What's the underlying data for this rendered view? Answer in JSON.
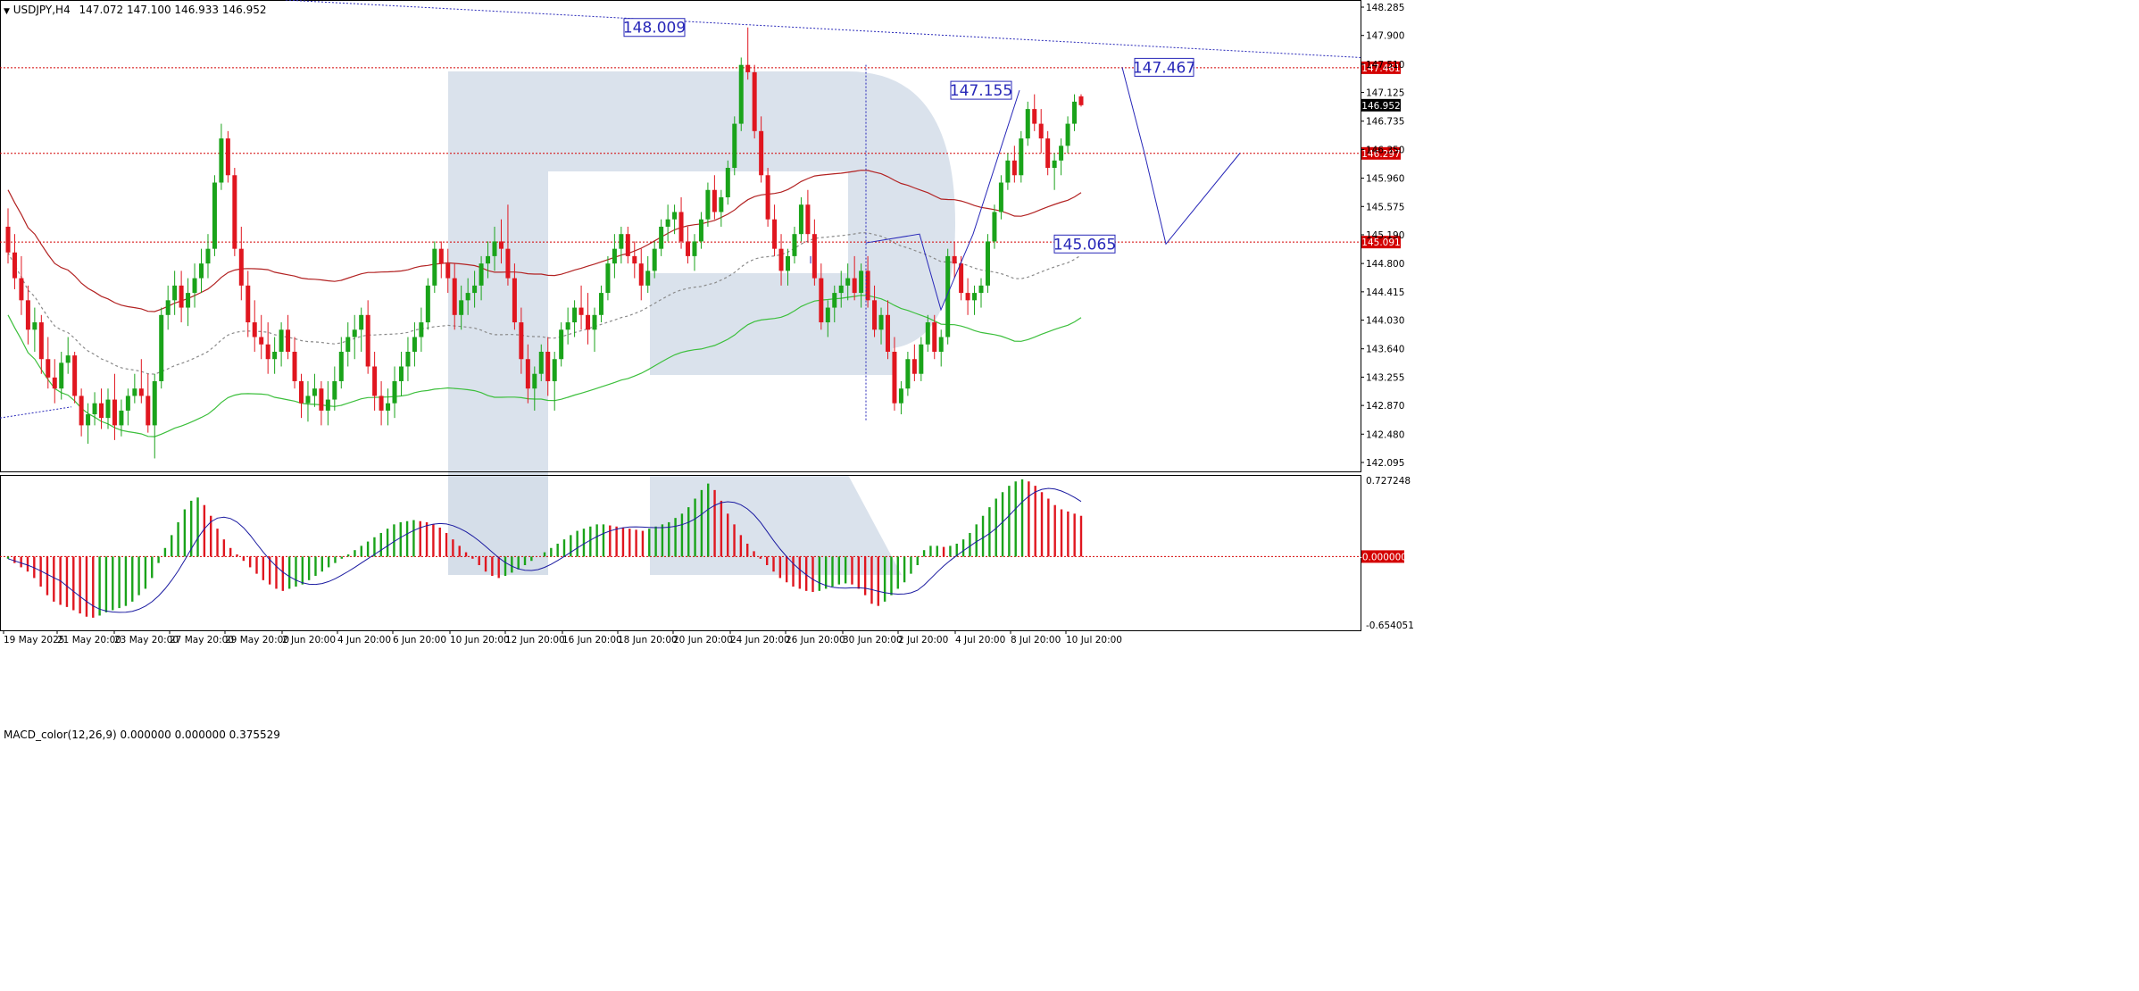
{
  "header": {
    "symbol": "USDJPY,H4",
    "ohlc": "147.072 147.100 146.933 146.952",
    "macd_label": "MACD_color(12,26,9) 0.000000 0.000000 0.375529"
  },
  "colors": {
    "bull": "#1aa31a",
    "bear": "#e0161f",
    "ma_red": "#b22222",
    "ma_green": "#3cbf3c",
    "ma_gray": "#8a8a8a",
    "forecast": "#2727b8",
    "level_line": "#d40000",
    "macd_signal": "#1a1aa0",
    "watermark": "#d4dde9"
  },
  "chart_data": [
    {
      "type": "candlestick",
      "symbol": "USDJPY",
      "timeframe": "H4",
      "ylim": [
        142.0,
        148.2
      ],
      "y_ticks": [
        148.285,
        147.9,
        147.51,
        147.125,
        146.735,
        146.35,
        145.96,
        145.575,
        145.19,
        144.8,
        144.415,
        144.03,
        143.64,
        143.255,
        142.87,
        142.48,
        142.095
      ],
      "x_ticks": [
        "19 May 2025",
        "21 May 20:00",
        "23 May 20:00",
        "27 May 20:00",
        "29 May 20:00",
        "2 Jun 20:00",
        "4 Jun 20:00",
        "6 Jun 20:00",
        "10 Jun 20:00",
        "12 Jun 20:00",
        "16 Jun 20:00",
        "18 Jun 20:00",
        "20 Jun 20:00",
        "24 Jun 20:00",
        "26 Jun 20:00",
        "30 Jun 20:00",
        "2 Jul 20:00",
        "4 Jul 20:00",
        "8 Jul 20:00",
        "10 Jul 20:00"
      ],
      "levels": [
        {
          "price": 147.461,
          "label": "147.461"
        },
        {
          "price": 146.297,
          "label": "146.297"
        },
        {
          "price": 145.091,
          "label": "145.091"
        }
      ],
      "current_price": {
        "price": 146.952,
        "label": "146.952"
      },
      "annotations": [
        {
          "text": "148.009",
          "price": 148.009
        },
        {
          "text": "147.155",
          "price": 147.155
        },
        {
          "text": "147.467",
          "price": 147.467
        },
        {
          "text": "145.065",
          "price": 145.065
        }
      ],
      "forecast_path": [
        147.467,
        146.297,
        145.065,
        146.3
      ],
      "candles": [
        [
          145.3,
          145.55,
          144.8,
          144.95
        ],
        [
          144.95,
          145.2,
          144.45,
          144.6
        ],
        [
          144.6,
          144.9,
          144.1,
          144.3
        ],
        [
          144.3,
          144.5,
          143.7,
          143.9
        ],
        [
          143.9,
          144.2,
          143.6,
          144.0
        ],
        [
          144.0,
          144.1,
          143.3,
          143.5
        ],
        [
          143.5,
          143.8,
          143.1,
          143.25
        ],
        [
          143.25,
          143.5,
          142.9,
          143.1
        ],
        [
          143.1,
          143.6,
          142.95,
          143.45
        ],
        [
          143.45,
          143.8,
          143.3,
          143.55
        ],
        [
          143.55,
          143.6,
          142.9,
          143.0
        ],
        [
          143.0,
          143.1,
          142.45,
          142.6
        ],
        [
          142.6,
          142.9,
          142.35,
          142.75
        ],
        [
          142.75,
          143.05,
          142.6,
          142.9
        ],
        [
          142.9,
          143.1,
          142.55,
          142.7
        ],
        [
          142.7,
          143.1,
          142.55,
          142.95
        ],
        [
          142.95,
          143.3,
          142.4,
          142.6
        ],
        [
          142.6,
          142.95,
          142.45,
          142.8
        ],
        [
          142.8,
          143.1,
          142.6,
          143.0
        ],
        [
          143.0,
          143.3,
          142.9,
          143.1
        ],
        [
          143.1,
          143.5,
          142.9,
          143.0
        ],
        [
          143.0,
          143.3,
          142.5,
          142.6
        ],
        [
          142.6,
          143.3,
          142.15,
          143.2
        ],
        [
          143.2,
          144.2,
          143.1,
          144.1
        ],
        [
          144.1,
          144.5,
          143.9,
          144.3
        ],
        [
          144.3,
          144.7,
          144.1,
          144.5
        ],
        [
          144.5,
          144.7,
          144.0,
          144.2
        ],
        [
          144.2,
          144.6,
          143.95,
          144.4
        ],
        [
          144.4,
          144.8,
          144.2,
          144.6
        ],
        [
          144.6,
          145.0,
          144.4,
          144.8
        ],
        [
          144.8,
          145.2,
          144.6,
          145.0
        ],
        [
          145.0,
          146.0,
          144.9,
          145.9
        ],
        [
          145.9,
          146.7,
          145.8,
          146.5
        ],
        [
          146.5,
          146.6,
          145.9,
          146.0
        ],
        [
          146.0,
          146.1,
          144.9,
          145.0
        ],
        [
          145.0,
          145.3,
          144.3,
          144.5
        ],
        [
          144.5,
          144.7,
          143.8,
          144.0
        ],
        [
          144.0,
          144.3,
          143.6,
          143.8
        ],
        [
          143.8,
          144.1,
          143.5,
          143.7
        ],
        [
          143.7,
          144.0,
          143.3,
          143.5
        ],
        [
          143.5,
          143.8,
          143.3,
          143.6
        ],
        [
          143.6,
          144.0,
          143.4,
          143.9
        ],
        [
          143.9,
          144.1,
          143.5,
          143.6
        ],
        [
          143.6,
          143.8,
          143.1,
          143.2
        ],
        [
          143.2,
          143.3,
          142.7,
          142.9
        ],
        [
          142.9,
          143.2,
          142.65,
          143.0
        ],
        [
          143.0,
          143.3,
          142.85,
          143.1
        ],
        [
          143.1,
          143.2,
          142.6,
          142.8
        ],
        [
          142.8,
          143.2,
          142.6,
          142.95
        ],
        [
          142.95,
          143.4,
          142.8,
          143.2
        ],
        [
          143.2,
          143.8,
          143.1,
          143.6
        ],
        [
          143.6,
          144.0,
          143.4,
          143.8
        ],
        [
          143.8,
          144.1,
          143.5,
          143.9
        ],
        [
          143.9,
          144.2,
          143.6,
          144.1
        ],
        [
          144.1,
          144.3,
          143.3,
          143.4
        ],
        [
          143.4,
          143.6,
          142.8,
          143.0
        ],
        [
          143.0,
          143.2,
          142.6,
          142.8
        ],
        [
          142.8,
          143.1,
          142.6,
          142.9
        ],
        [
          142.9,
          143.4,
          142.7,
          143.2
        ],
        [
          143.2,
          143.6,
          143.0,
          143.4
        ],
        [
          143.4,
          143.8,
          143.2,
          143.6
        ],
        [
          143.6,
          144.0,
          143.4,
          143.8
        ],
        [
          143.8,
          144.2,
          143.6,
          144.0
        ],
        [
          144.0,
          144.6,
          143.9,
          144.5
        ],
        [
          144.5,
          145.1,
          144.4,
          145.0
        ],
        [
          145.0,
          145.1,
          144.6,
          144.8
        ],
        [
          144.8,
          145.0,
          144.4,
          144.6
        ],
        [
          144.6,
          144.8,
          143.9,
          144.1
        ],
        [
          144.1,
          144.5,
          143.9,
          144.3
        ],
        [
          144.3,
          144.6,
          144.1,
          144.4
        ],
        [
          144.4,
          144.7,
          144.2,
          144.5
        ],
        [
          144.5,
          144.9,
          144.3,
          144.8
        ],
        [
          144.8,
          145.1,
          144.6,
          144.9
        ],
        [
          144.9,
          145.3,
          144.7,
          145.1
        ],
        [
          145.1,
          145.4,
          144.8,
          145.0
        ],
        [
          145.0,
          145.6,
          144.5,
          144.6
        ],
        [
          144.6,
          144.8,
          143.9,
          144.0
        ],
        [
          144.0,
          144.2,
          143.3,
          143.5
        ],
        [
          143.5,
          143.7,
          142.9,
          143.1
        ],
        [
          143.1,
          143.4,
          142.8,
          143.3
        ],
        [
          143.3,
          143.7,
          143.2,
          143.6
        ],
        [
          143.6,
          143.8,
          143.0,
          143.2
        ],
        [
          143.2,
          143.6,
          142.8,
          143.5
        ],
        [
          143.5,
          144.0,
          143.4,
          143.9
        ],
        [
          143.9,
          144.2,
          143.7,
          144.0
        ],
        [
          144.0,
          144.3,
          143.8,
          144.2
        ],
        [
          144.2,
          144.5,
          143.9,
          144.1
        ],
        [
          144.1,
          144.4,
          143.7,
          143.9
        ],
        [
          143.9,
          144.2,
          143.6,
          144.1
        ],
        [
          144.1,
          144.5,
          144.0,
          144.4
        ],
        [
          144.4,
          144.9,
          144.3,
          144.8
        ],
        [
          144.8,
          145.2,
          144.6,
          145.0
        ],
        [
          145.0,
          145.3,
          144.8,
          145.2
        ],
        [
          145.2,
          145.3,
          144.8,
          144.9
        ],
        [
          144.9,
          145.1,
          144.6,
          144.8
        ],
        [
          144.8,
          145.0,
          144.3,
          144.5
        ],
        [
          144.5,
          144.9,
          144.4,
          144.7
        ],
        [
          144.7,
          145.1,
          144.6,
          145.0
        ],
        [
          145.0,
          145.4,
          144.9,
          145.3
        ],
        [
          145.3,
          145.6,
          145.1,
          145.4
        ],
        [
          145.4,
          145.6,
          145.2,
          145.5
        ],
        [
          145.5,
          145.7,
          145.0,
          145.1
        ],
        [
          145.1,
          145.3,
          144.8,
          144.9
        ],
        [
          144.9,
          145.2,
          144.7,
          145.1
        ],
        [
          145.1,
          145.5,
          145.0,
          145.4
        ],
        [
          145.4,
          145.9,
          145.3,
          145.8
        ],
        [
          145.8,
          146.0,
          145.4,
          145.5
        ],
        [
          145.5,
          145.8,
          145.3,
          145.7
        ],
        [
          145.7,
          146.2,
          145.6,
          146.1
        ],
        [
          146.1,
          146.8,
          146.0,
          146.7
        ],
        [
          146.7,
          147.6,
          146.6,
          147.5
        ],
        [
          147.5,
          148.009,
          147.3,
          147.4
        ],
        [
          147.4,
          147.5,
          146.5,
          146.6
        ],
        [
          146.6,
          146.8,
          145.9,
          146.0
        ],
        [
          146.0,
          146.1,
          145.3,
          145.4
        ],
        [
          145.4,
          145.6,
          144.9,
          145.0
        ],
        [
          145.0,
          145.2,
          144.5,
          144.7
        ],
        [
          144.7,
          145.0,
          144.5,
          144.9
        ],
        [
          144.9,
          145.3,
          144.8,
          145.2
        ],
        [
          145.2,
          145.7,
          145.1,
          145.6
        ],
        [
          145.6,
          145.8,
          145.1,
          145.2
        ],
        [
          145.2,
          145.4,
          144.5,
          144.6
        ],
        [
          144.6,
          144.8,
          143.9,
          144.0
        ],
        [
          144.0,
          144.3,
          143.8,
          144.2
        ],
        [
          144.2,
          144.5,
          144.0,
          144.4
        ],
        [
          144.4,
          144.7,
          144.2,
          144.5
        ],
        [
          144.5,
          144.8,
          144.3,
          144.6
        ],
        [
          144.6,
          144.9,
          144.3,
          144.4
        ],
        [
          144.4,
          144.8,
          144.2,
          144.7
        ],
        [
          144.7,
          144.9,
          144.2,
          144.3
        ],
        [
          144.3,
          144.5,
          143.8,
          143.9
        ],
        [
          143.9,
          144.2,
          143.7,
          144.1
        ],
        [
          144.1,
          144.3,
          143.5,
          143.6
        ],
        [
          143.6,
          143.8,
          142.8,
          142.9
        ],
        [
          142.9,
          143.2,
          142.75,
          143.1
        ],
        [
          143.1,
          143.6,
          143.0,
          143.5
        ],
        [
          143.5,
          143.7,
          143.2,
          143.3
        ],
        [
          143.3,
          143.8,
          143.2,
          143.7
        ],
        [
          143.7,
          144.1,
          143.6,
          144.0
        ],
        [
          144.0,
          144.1,
          143.5,
          143.6
        ],
        [
          143.6,
          143.9,
          143.4,
          143.8
        ],
        [
          143.8,
          145.0,
          143.7,
          144.9
        ],
        [
          144.9,
          145.1,
          144.6,
          144.8
        ],
        [
          144.8,
          144.9,
          144.3,
          144.4
        ],
        [
          144.4,
          144.6,
          144.1,
          144.3
        ],
        [
          144.3,
          144.5,
          144.1,
          144.4
        ],
        [
          144.4,
          144.6,
          144.2,
          144.5
        ],
        [
          144.5,
          145.2,
          144.4,
          145.1
        ],
        [
          145.1,
          145.6,
          145.0,
          145.5
        ],
        [
          145.5,
          146.0,
          145.4,
          145.9
        ],
        [
          145.9,
          146.3,
          145.8,
          146.2
        ],
        [
          146.2,
          146.4,
          145.9,
          146.0
        ],
        [
          146.0,
          146.6,
          145.9,
          146.5
        ],
        [
          146.5,
          147.0,
          146.4,
          146.9
        ],
        [
          146.9,
          147.1,
          146.6,
          146.7
        ],
        [
          146.7,
          146.9,
          146.3,
          146.5
        ],
        [
          146.5,
          146.6,
          146.0,
          146.1
        ],
        [
          146.1,
          146.3,
          145.8,
          146.2
        ],
        [
          146.2,
          146.5,
          146.0,
          146.4
        ],
        [
          146.4,
          146.8,
          146.3,
          146.7
        ],
        [
          146.7,
          147.1,
          146.6,
          147.0
        ],
        [
          147.072,
          147.1,
          146.933,
          146.952
        ]
      ]
    },
    {
      "type": "histogram",
      "title": "MACD_color(12,26,9) 0.000000 0.000000 0.375529",
      "ylim": [
        -0.654051,
        0.727248
      ],
      "y_ticks": [
        0.727248,
        -0.0,
        -0.654051
      ],
      "zero_label": "-0.000000",
      "top_label": "0.727248",
      "bottom_label": "-0.654051",
      "values": [
        -0.02,
        -0.06,
        -0.1,
        -0.14,
        -0.2,
        -0.28,
        -0.36,
        -0.42,
        -0.45,
        -0.47,
        -0.5,
        -0.53,
        -0.56,
        -0.57,
        -0.55,
        -0.52,
        -0.5,
        -0.48,
        -0.46,
        -0.42,
        -0.36,
        -0.3,
        -0.2,
        -0.06,
        0.08,
        0.2,
        0.32,
        0.44,
        0.52,
        0.55,
        0.48,
        0.38,
        0.26,
        0.16,
        0.08,
        0.02,
        -0.04,
        -0.1,
        -0.16,
        -0.22,
        -0.26,
        -0.3,
        -0.32,
        -0.3,
        -0.28,
        -0.26,
        -0.22,
        -0.18,
        -0.14,
        -0.1,
        -0.06,
        -0.02,
        0.02,
        0.06,
        0.1,
        0.14,
        0.18,
        0.22,
        0.26,
        0.3,
        0.32,
        0.33,
        0.34,
        0.33,
        0.32,
        0.3,
        0.27,
        0.22,
        0.16,
        0.1,
        0.04,
        -0.02,
        -0.08,
        -0.14,
        -0.18,
        -0.2,
        -0.18,
        -0.15,
        -0.12,
        -0.08,
        -0.04,
        0.0,
        0.04,
        0.08,
        0.12,
        0.16,
        0.2,
        0.24,
        0.26,
        0.28,
        0.3,
        0.3,
        0.29,
        0.28,
        0.27,
        0.26,
        0.25,
        0.24,
        0.26,
        0.28,
        0.3,
        0.32,
        0.36,
        0.4,
        0.46,
        0.54,
        0.62,
        0.68,
        0.62,
        0.52,
        0.4,
        0.3,
        0.2,
        0.12,
        0.05,
        -0.02,
        -0.08,
        -0.14,
        -0.2,
        -0.24,
        -0.28,
        -0.3,
        -0.32,
        -0.33,
        -0.32,
        -0.3,
        -0.28,
        -0.26,
        -0.25,
        -0.26,
        -0.3,
        -0.36,
        -0.44,
        -0.46,
        -0.42,
        -0.36,
        -0.3,
        -0.24,
        -0.16,
        -0.08,
        0.06,
        0.1,
        0.1,
        0.09,
        0.1,
        0.12,
        0.16,
        0.22,
        0.3,
        0.38,
        0.46,
        0.54,
        0.6,
        0.66,
        0.7,
        0.72,
        0.7,
        0.66,
        0.6,
        0.54,
        0.48,
        0.44,
        0.42,
        0.4,
        0.38
      ]
    }
  ],
  "watermark": "R"
}
